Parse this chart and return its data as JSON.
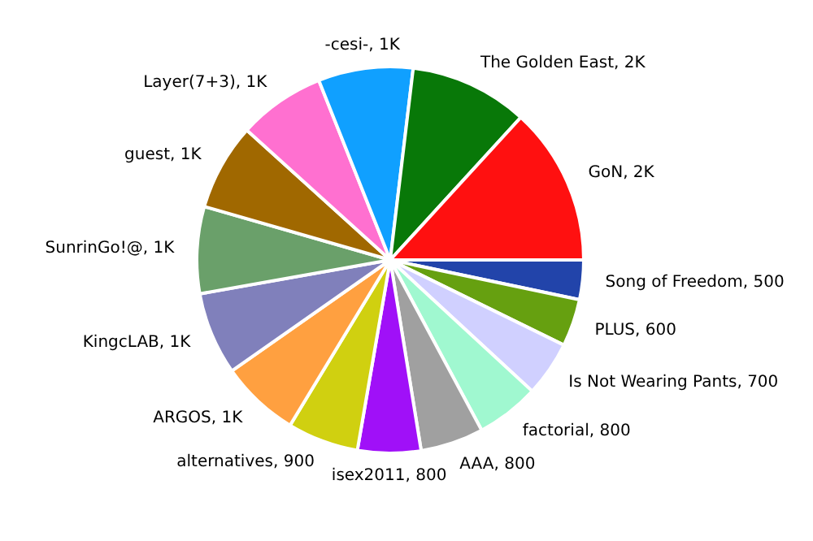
{
  "chart_data": {
    "type": "pie",
    "categories": [
      "Song of Freedom",
      "PLUS",
      "Is Not Wearing Pants",
      "factorial",
      "AAA",
      "isex2011",
      "alternatives",
      "ARGOS",
      "KingcLAB",
      "SunrinGo!@",
      "guest",
      "Layer(7+3)",
      "-cesi-",
      "The Golden East",
      "GoN"
    ],
    "values": [
      500,
      600,
      700,
      800,
      800,
      800,
      900,
      1000,
      1050,
      1100,
      1100,
      1100,
      1200,
      1500,
      2000
    ],
    "value_labels": [
      "500",
      "600",
      "700",
      "800",
      "800",
      "800",
      "900",
      "1K",
      "1K",
      "1K",
      "1K",
      "1K",
      "1K",
      "2K",
      "2K"
    ],
    "colors": [
      "#2244aa",
      "#66a010",
      "#d0d0ff",
      "#a0f8d0",
      "#a0a0a0",
      "#a010f8",
      "#d0d010",
      "#ffa040",
      "#8080bb",
      "#6aa06a",
      "#a06800",
      "#ff70d0",
      "#10a0ff",
      "#087808",
      "#ff1010"
    ]
  }
}
